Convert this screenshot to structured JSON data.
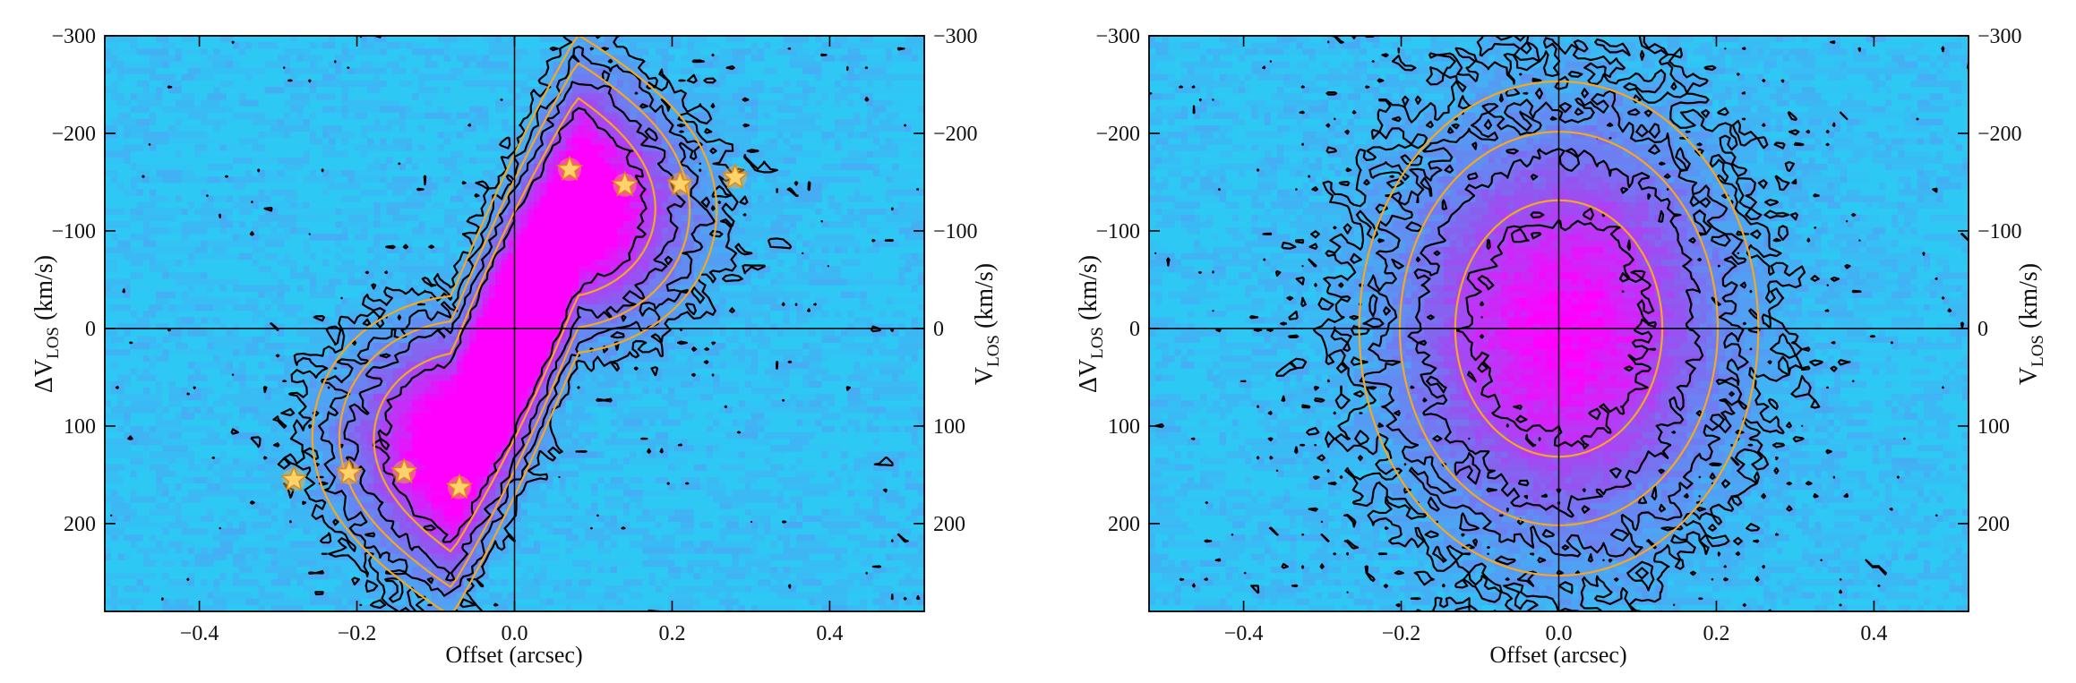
{
  "chart_data": [
    {
      "type": "heatmap",
      "xlabel": "Offset (arcsec)",
      "ylabel_main": "ΔV",
      "ylabel_sub": "LOS",
      "ylabel_unit": " (km/s)",
      "ylabel_right_main": "V",
      "ylabel_right_sub": "LOS",
      "ylabel_right_unit": " (km/s)",
      "xlim": [
        -0.52,
        0.52
      ],
      "ylim": [
        290,
        -300
      ],
      "xticks": [
        -0.4,
        -0.2,
        0.0,
        0.2,
        0.4
      ],
      "xtick_labels": [
        "−0.4",
        "−0.2",
        "0.0",
        "0.2",
        "0.4"
      ],
      "yticks": [
        -300,
        -200,
        -100,
        0,
        100,
        200
      ],
      "ytick_labels": [
        "−300",
        "−200",
        "−100",
        "0",
        "100",
        "200"
      ],
      "grid": false,
      "reference_lines": {
        "x": 0,
        "y": 0
      },
      "emission": [
        {
          "x": 0.08,
          "y": -120,
          "sx": 0.09,
          "sy": 70,
          "amp": 1.0
        },
        {
          "x": -0.08,
          "y": 110,
          "sx": 0.09,
          "sy": 70,
          "amp": 1.0
        },
        {
          "x": 0.0,
          "y": 0,
          "sx": 0.08,
          "sy": 80,
          "amp": 0.55
        }
      ],
      "rotation": {
        "vmax": 150,
        "r_turn": 0.08
      },
      "contour_levels_black": [
        0.1,
        0.22,
        0.4,
        0.7
      ],
      "contour_levels_orange": [
        0.15,
        0.3,
        0.6
      ],
      "stars": [
        {
          "x": 0.07,
          "y": -163
        },
        {
          "x": 0.14,
          "y": -147
        },
        {
          "x": 0.21,
          "y": -148
        },
        {
          "x": 0.28,
          "y": -155
        },
        {
          "x": -0.07,
          "y": 163
        },
        {
          "x": -0.14,
          "y": 147
        },
        {
          "x": -0.21,
          "y": 148
        },
        {
          "x": -0.28,
          "y": 155
        }
      ],
      "colors": {
        "low": "#2ec8f5",
        "mid": "#8c5cf0",
        "high": "#ff00ff",
        "contour": "#000000",
        "model_contour": "#f5a623",
        "star": "#ffd36b"
      }
    },
    {
      "type": "heatmap",
      "xlabel": "Offset (arcsec)",
      "ylabel_main": "ΔV",
      "ylabel_sub": "LOS",
      "ylabel_unit": " (km/s)",
      "ylabel_right_main": "V",
      "ylabel_right_sub": "LOS",
      "ylabel_right_unit": " (km/s)",
      "xlim": [
        -0.52,
        0.52
      ],
      "ylim": [
        290,
        -300
      ],
      "xticks": [
        -0.4,
        -0.2,
        0.0,
        0.2,
        0.4
      ],
      "xtick_labels": [
        "−0.4",
        "−0.2",
        "0.0",
        "0.2",
        "0.4"
      ],
      "yticks": [
        -300,
        -200,
        -100,
        0,
        100,
        200
      ],
      "ytick_labels": [
        "−300",
        "−200",
        "−100",
        "0",
        "100",
        "200"
      ],
      "grid": false,
      "reference_lines": {
        "x": 0,
        "y": 0
      },
      "emission": [
        {
          "x": 0.0,
          "y": 0,
          "sx": 0.13,
          "sy": 130,
          "amp": 1.0
        }
      ],
      "rotation": {
        "vmax": 0,
        "r_turn": 0.08
      },
      "contour_levels_black": [
        0.1,
        0.22,
        0.4,
        0.7
      ],
      "contour_levels_orange": [
        0.15,
        0.3,
        0.6
      ],
      "stars": [],
      "colors": {
        "low": "#2ec8f5",
        "mid": "#8c5cf0",
        "high": "#ff00ff",
        "contour": "#000000",
        "model_contour": "#f5a623",
        "star": "#ffd36b"
      }
    }
  ]
}
